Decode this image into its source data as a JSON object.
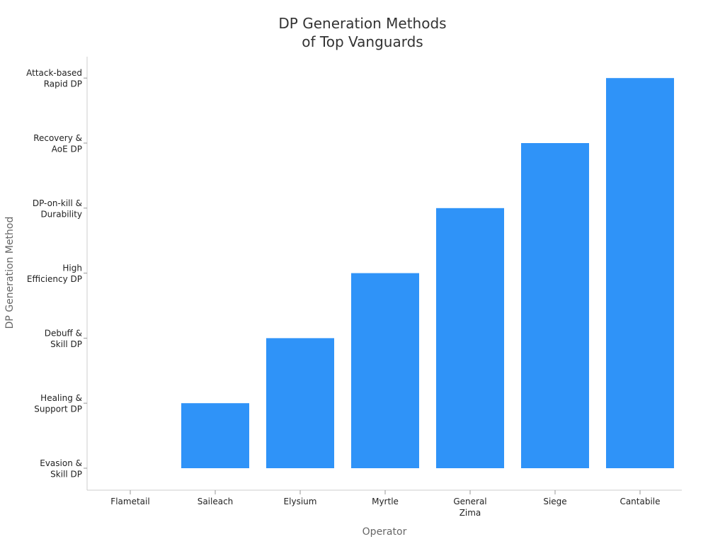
{
  "chart_data": {
    "type": "bar",
    "title": [
      "DP Generation Methods",
      "of Top Vanguards"
    ],
    "xlabel": "Operator",
    "ylabel": "DP Generation Method",
    "categories": [
      [
        "Flametail"
      ],
      [
        "Saileach"
      ],
      [
        "Elysium"
      ],
      [
        "Myrtle"
      ],
      [
        "General",
        "Zima"
      ],
      [
        "Siege"
      ],
      [
        "Cantabile"
      ]
    ],
    "y_categories": [
      [
        "Evasion &",
        "Skill DP"
      ],
      [
        "Healing &",
        "Support DP"
      ],
      [
        "Debuff &",
        "Skill DP"
      ],
      [
        "High",
        "Efficiency DP"
      ],
      [
        "DP-on-kill &",
        "Durability"
      ],
      [
        "Recovery &",
        "AoE DP"
      ],
      [
        "Attack-based",
        "Rapid DP"
      ]
    ],
    "values": [
      0,
      1,
      2,
      3,
      4,
      5,
      6
    ],
    "bar_color": "#2f93f8",
    "grid": false
  }
}
